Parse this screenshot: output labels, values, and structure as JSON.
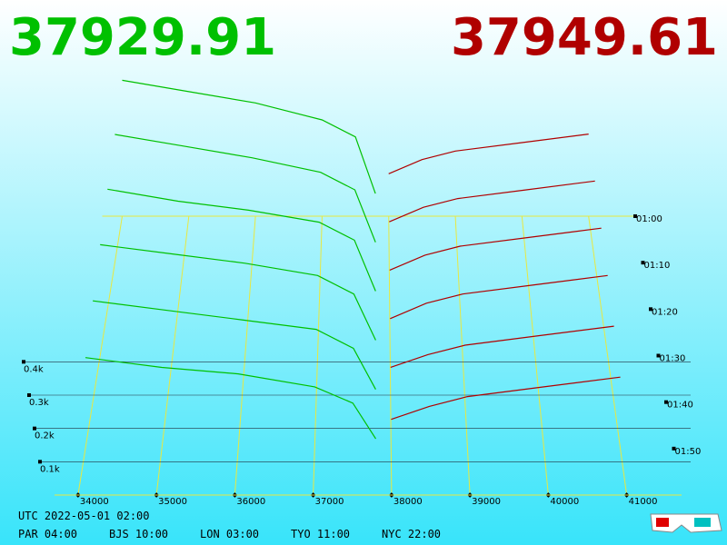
{
  "chart_data": {
    "type": "depth3d",
    "bid_price": 37929.91,
    "ask_price": 37949.61,
    "bid_color": "#00c000",
    "ask_color": "#b00000",
    "xlim": [
      33700,
      41700
    ],
    "xticks": [
      34000,
      35000,
      36000,
      37000,
      38000,
      39000,
      40000,
      41000
    ],
    "ylim": [
      0,
      450
    ],
    "yticks": [
      {
        "value": 100,
        "label": "0.1k"
      },
      {
        "value": 200,
        "label": "0.2k"
      },
      {
        "value": 300,
        "label": "0.3k"
      },
      {
        "value": 400,
        "label": "0.4k"
      }
    ],
    "bid_prices": [
      34000,
      35000,
      36000,
      37000,
      37500,
      37800
    ],
    "ask_prices": [
      38000,
      38500,
      39000,
      40000,
      41000
    ],
    "snapshots": [
      {
        "time": "01:00",
        "bids": [
          480,
          440,
          400,
          340,
          280,
          80
        ],
        "asks": [
          150,
          200,
          230,
          260,
          290
        ]
      },
      {
        "time": "01:10",
        "bids": [
          440,
          400,
          360,
          310,
          250,
          70
        ],
        "asks": [
          140,
          190,
          220,
          250,
          280
        ]
      },
      {
        "time": "01:20",
        "bids": [
          400,
          360,
          330,
          290,
          230,
          60
        ],
        "asks": [
          130,
          180,
          210,
          240,
          270
        ]
      },
      {
        "time": "01:30",
        "bids": [
          360,
          330,
          300,
          260,
          200,
          50
        ],
        "asks": [
          120,
          170,
          200,
          230,
          260
        ]
      },
      {
        "time": "01:40",
        "bids": [
          320,
          290,
          260,
          230,
          170,
          40
        ],
        "asks": [
          110,
          150,
          180,
          210,
          240
        ]
      },
      {
        "time": "01:50",
        "bids": [
          280,
          250,
          230,
          190,
          140,
          30
        ],
        "asks": [
          90,
          130,
          160,
          190,
          220
        ]
      }
    ]
  },
  "footer": {
    "utc": "UTC 2022-05-01 02:00",
    "zones": [
      "PAR 04:00",
      "BJS 10:00",
      "LON 03:00",
      "TYO 11:00",
      "NYC 22:00"
    ]
  }
}
